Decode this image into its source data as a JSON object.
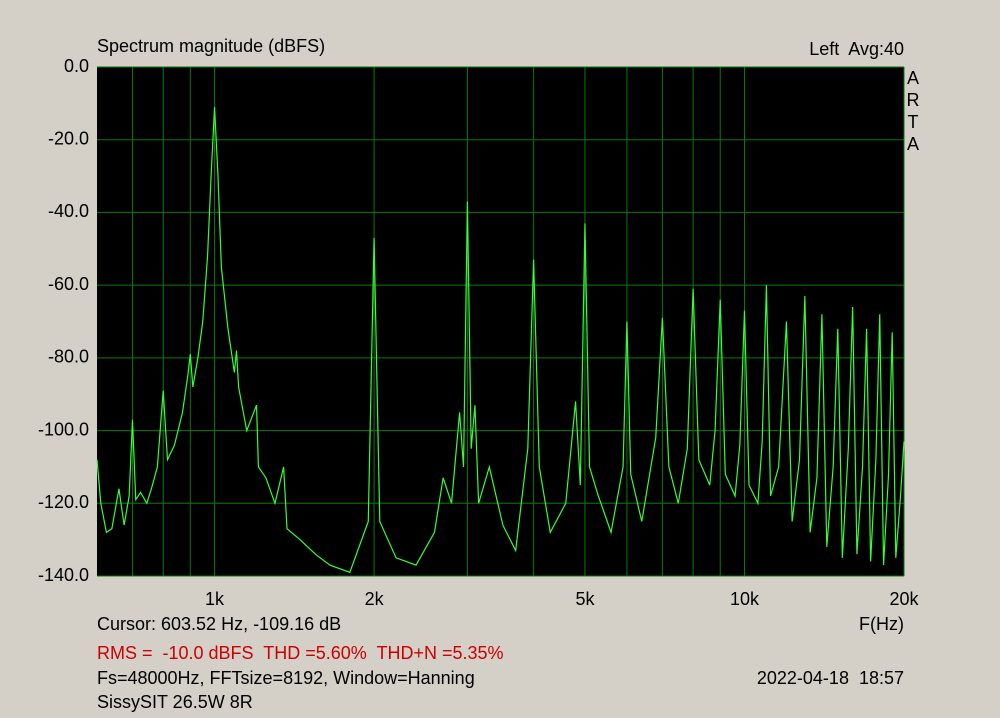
{
  "chart_data": {
    "type": "line",
    "title": "Spectrum magnitude (dBFS)",
    "channel_label": "Left  Avg:40",
    "watermark": "ARTA",
    "xlabel": "F(Hz)",
    "cursor_readout": "Cursor: 603.52 Hz, -109.16 dB",
    "measurements": "RMS =  -10.0 dBFS  THD =5.60%  THD+N =5.35%",
    "settings": "Fs=48000Hz, FFTsize=8192, Window=Hanning",
    "timestamp": "2022-04-18  18:57",
    "device": "SissySIT 26.5W 8R",
    "xscale": "log",
    "grid": true,
    "background": "#000000",
    "grid_color": "#0b7a0b",
    "xlim": [
      600,
      20000
    ],
    "ylim": [
      -140,
      0
    ],
    "xticks": [
      {
        "value": 1000,
        "label": "1k"
      },
      {
        "value": 2000,
        "label": "2k"
      },
      {
        "value": 5000,
        "label": "5k"
      },
      {
        "value": 10000,
        "label": "10k"
      },
      {
        "value": 20000,
        "label": "20k"
      }
    ],
    "xminor": [
      700,
      800,
      900,
      3000,
      4000,
      6000,
      7000,
      8000,
      9000
    ],
    "yticks": [
      {
        "value": 0,
        "label": "0.0"
      },
      {
        "value": -20,
        "label": "-20.0"
      },
      {
        "value": -40,
        "label": "-40.0"
      },
      {
        "value": -60,
        "label": "-60.0"
      },
      {
        "value": -80,
        "label": "-80.0"
      },
      {
        "value": -100,
        "label": "-100.0"
      },
      {
        "value": -120,
        "label": "-120.0"
      },
      {
        "value": -140,
        "label": "-140.0"
      }
    ],
    "x": [
      600,
      610,
      625,
      640,
      660,
      675,
      690,
      700,
      710,
      725,
      745,
      760,
      780,
      800,
      815,
      840,
      870,
      890,
      900,
      910,
      930,
      950,
      970,
      985,
      1000,
      1015,
      1030,
      1060,
      1090,
      1100,
      1110,
      1150,
      1200,
      1210,
      1250,
      1300,
      1350,
      1370,
      1450,
      1550,
      1650,
      1800,
      1950,
      2000,
      2050,
      2200,
      2400,
      2600,
      2700,
      2800,
      2900,
      2950,
      3000,
      3050,
      3100,
      3150,
      3300,
      3500,
      3700,
      3900,
      4000,
      4100,
      4300,
      4600,
      4800,
      4900,
      5000,
      5100,
      5300,
      5600,
      5900,
      6000,
      6100,
      6400,
      6800,
      7000,
      7200,
      7500,
      7800,
      8000,
      8200,
      8600,
      8800,
      9000,
      9200,
      9600,
      9800,
      10000,
      10200,
      10600,
      10800,
      11000,
      11200,
      11600,
      12000,
      12300,
      12700,
      13000,
      13300,
      13700,
      14000,
      14300,
      14700,
      15000,
      15300,
      15700,
      16000,
      16300,
      16700,
      17000,
      17300,
      17700,
      18000,
      18300,
      18700,
      19000,
      19300,
      19700,
      20000
    ],
    "series": [
      {
        "color": "#33ff33",
        "values": [
          -108,
          -120,
          -128,
          -127,
          -116,
          -126,
          -118,
          -97,
          -119,
          -117,
          -120,
          -116,
          -110,
          -89,
          -108,
          -104,
          -95,
          -85,
          -79,
          -88,
          -80,
          -70,
          -52,
          -30,
          -11,
          -30,
          -55,
          -72,
          -84,
          -78,
          -88,
          -100,
          -93,
          -110,
          -113,
          -120,
          -110,
          -127,
          -130,
          -134,
          -137,
          -139,
          -125,
          -47,
          -125,
          -135,
          -137,
          -128,
          -113,
          -120,
          -95,
          -110,
          -37,
          -105,
          -93,
          -120,
          -110,
          -126,
          -133,
          -105,
          -53,
          -110,
          -128,
          -120,
          -92,
          -115,
          -43,
          -110,
          -118,
          -128,
          -110,
          -70,
          -112,
          -125,
          -102,
          -69,
          -110,
          -120,
          -105,
          -61,
          -108,
          -115,
          -100,
          -64,
          -112,
          -118,
          -104,
          -67,
          -115,
          -120,
          -103,
          -60,
          -118,
          -110,
          -70,
          -125,
          -108,
          -63,
          -128,
          -113,
          -68,
          -132,
          -110,
          -72,
          -135,
          -105,
          -66,
          -134,
          -110,
          -72,
          -136,
          -108,
          -68,
          -137,
          -112,
          -73,
          -135,
          -118,
          -103
        ]
      }
    ]
  }
}
